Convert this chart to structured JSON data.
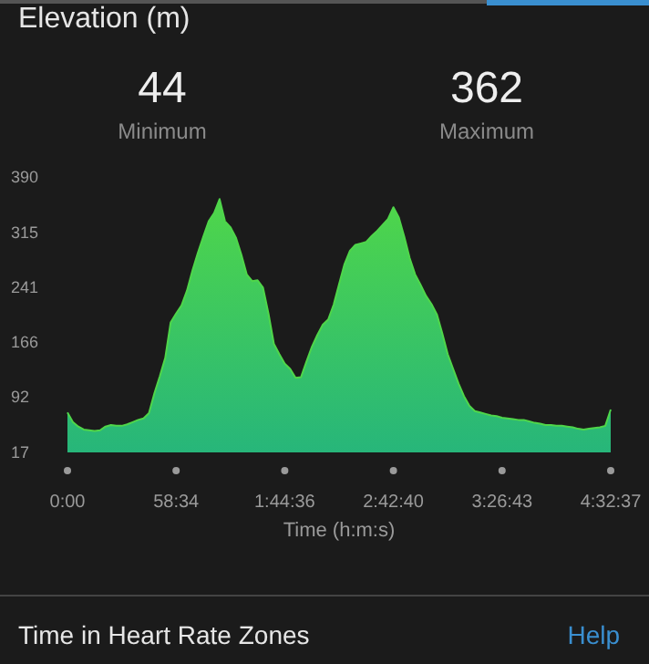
{
  "chart_data": {
    "type": "area",
    "title": "Elevation (m)",
    "xlabel": "Time (h:m:s)",
    "annotations": [
      "44",
      "Minimum",
      "362",
      "Maximum",
      "Time in Heart Rate Zones",
      "Help"
    ],
    "categories": [
      "0:00",
      null,
      null,
      null,
      null,
      null,
      null,
      null,
      null,
      null,
      null,
      null,
      null,
      null,
      null,
      null,
      null,
      null,
      null,
      null,
      "58:34",
      null,
      null,
      null,
      null,
      null,
      null,
      null,
      null,
      null,
      null,
      null,
      null,
      null,
      null,
      null,
      null,
      null,
      null,
      null,
      "1:44:36",
      null,
      null,
      null,
      null,
      null,
      null,
      null,
      null,
      null,
      null,
      null,
      null,
      null,
      null,
      null,
      null,
      null,
      null,
      null,
      "2:42:40",
      null,
      null,
      null,
      null,
      null,
      null,
      null,
      null,
      null,
      null,
      null,
      null,
      null,
      null,
      null,
      null,
      null,
      null,
      null,
      "3:26:43",
      null,
      null,
      null,
      null,
      null,
      null,
      null,
      null,
      null,
      null,
      null,
      null,
      null,
      null,
      null,
      null,
      null,
      null,
      null,
      "4:32:37"
    ],
    "series": [
      {
        "color": "#4fd64a",
        "values": [
          71,
          58,
          52,
          48,
          47,
          46,
          47,
          52,
          54,
          53,
          53,
          55,
          58,
          61,
          63,
          70,
          97,
          120,
          145,
          193,
          205,
          216,
          236,
          263,
          287,
          309,
          330,
          341,
          360,
          330,
          322,
          308,
          285,
          258,
          249,
          250,
          240,
          205,
          164,
          150,
          137,
          130,
          118,
          119,
          140,
          160,
          176,
          190,
          197,
          217,
          245,
          272,
          290,
          298,
          300,
          302,
          310,
          317,
          325,
          333,
          349,
          335,
          309,
          280,
          258,
          244,
          229,
          218,
          204,
          178,
          150,
          130,
          110,
          93,
          80,
          73,
          71,
          69,
          67,
          66,
          64,
          63,
          62,
          61,
          61,
          59,
          57,
          56,
          54,
          54,
          53,
          53,
          52,
          51,
          49,
          48,
          49,
          50,
          51,
          53,
          75
        ]
      }
    ],
    "ylim": [
      17,
      390
    ],
    "yticks": [
      17,
      92,
      166,
      241,
      315,
      390
    ]
  }
}
